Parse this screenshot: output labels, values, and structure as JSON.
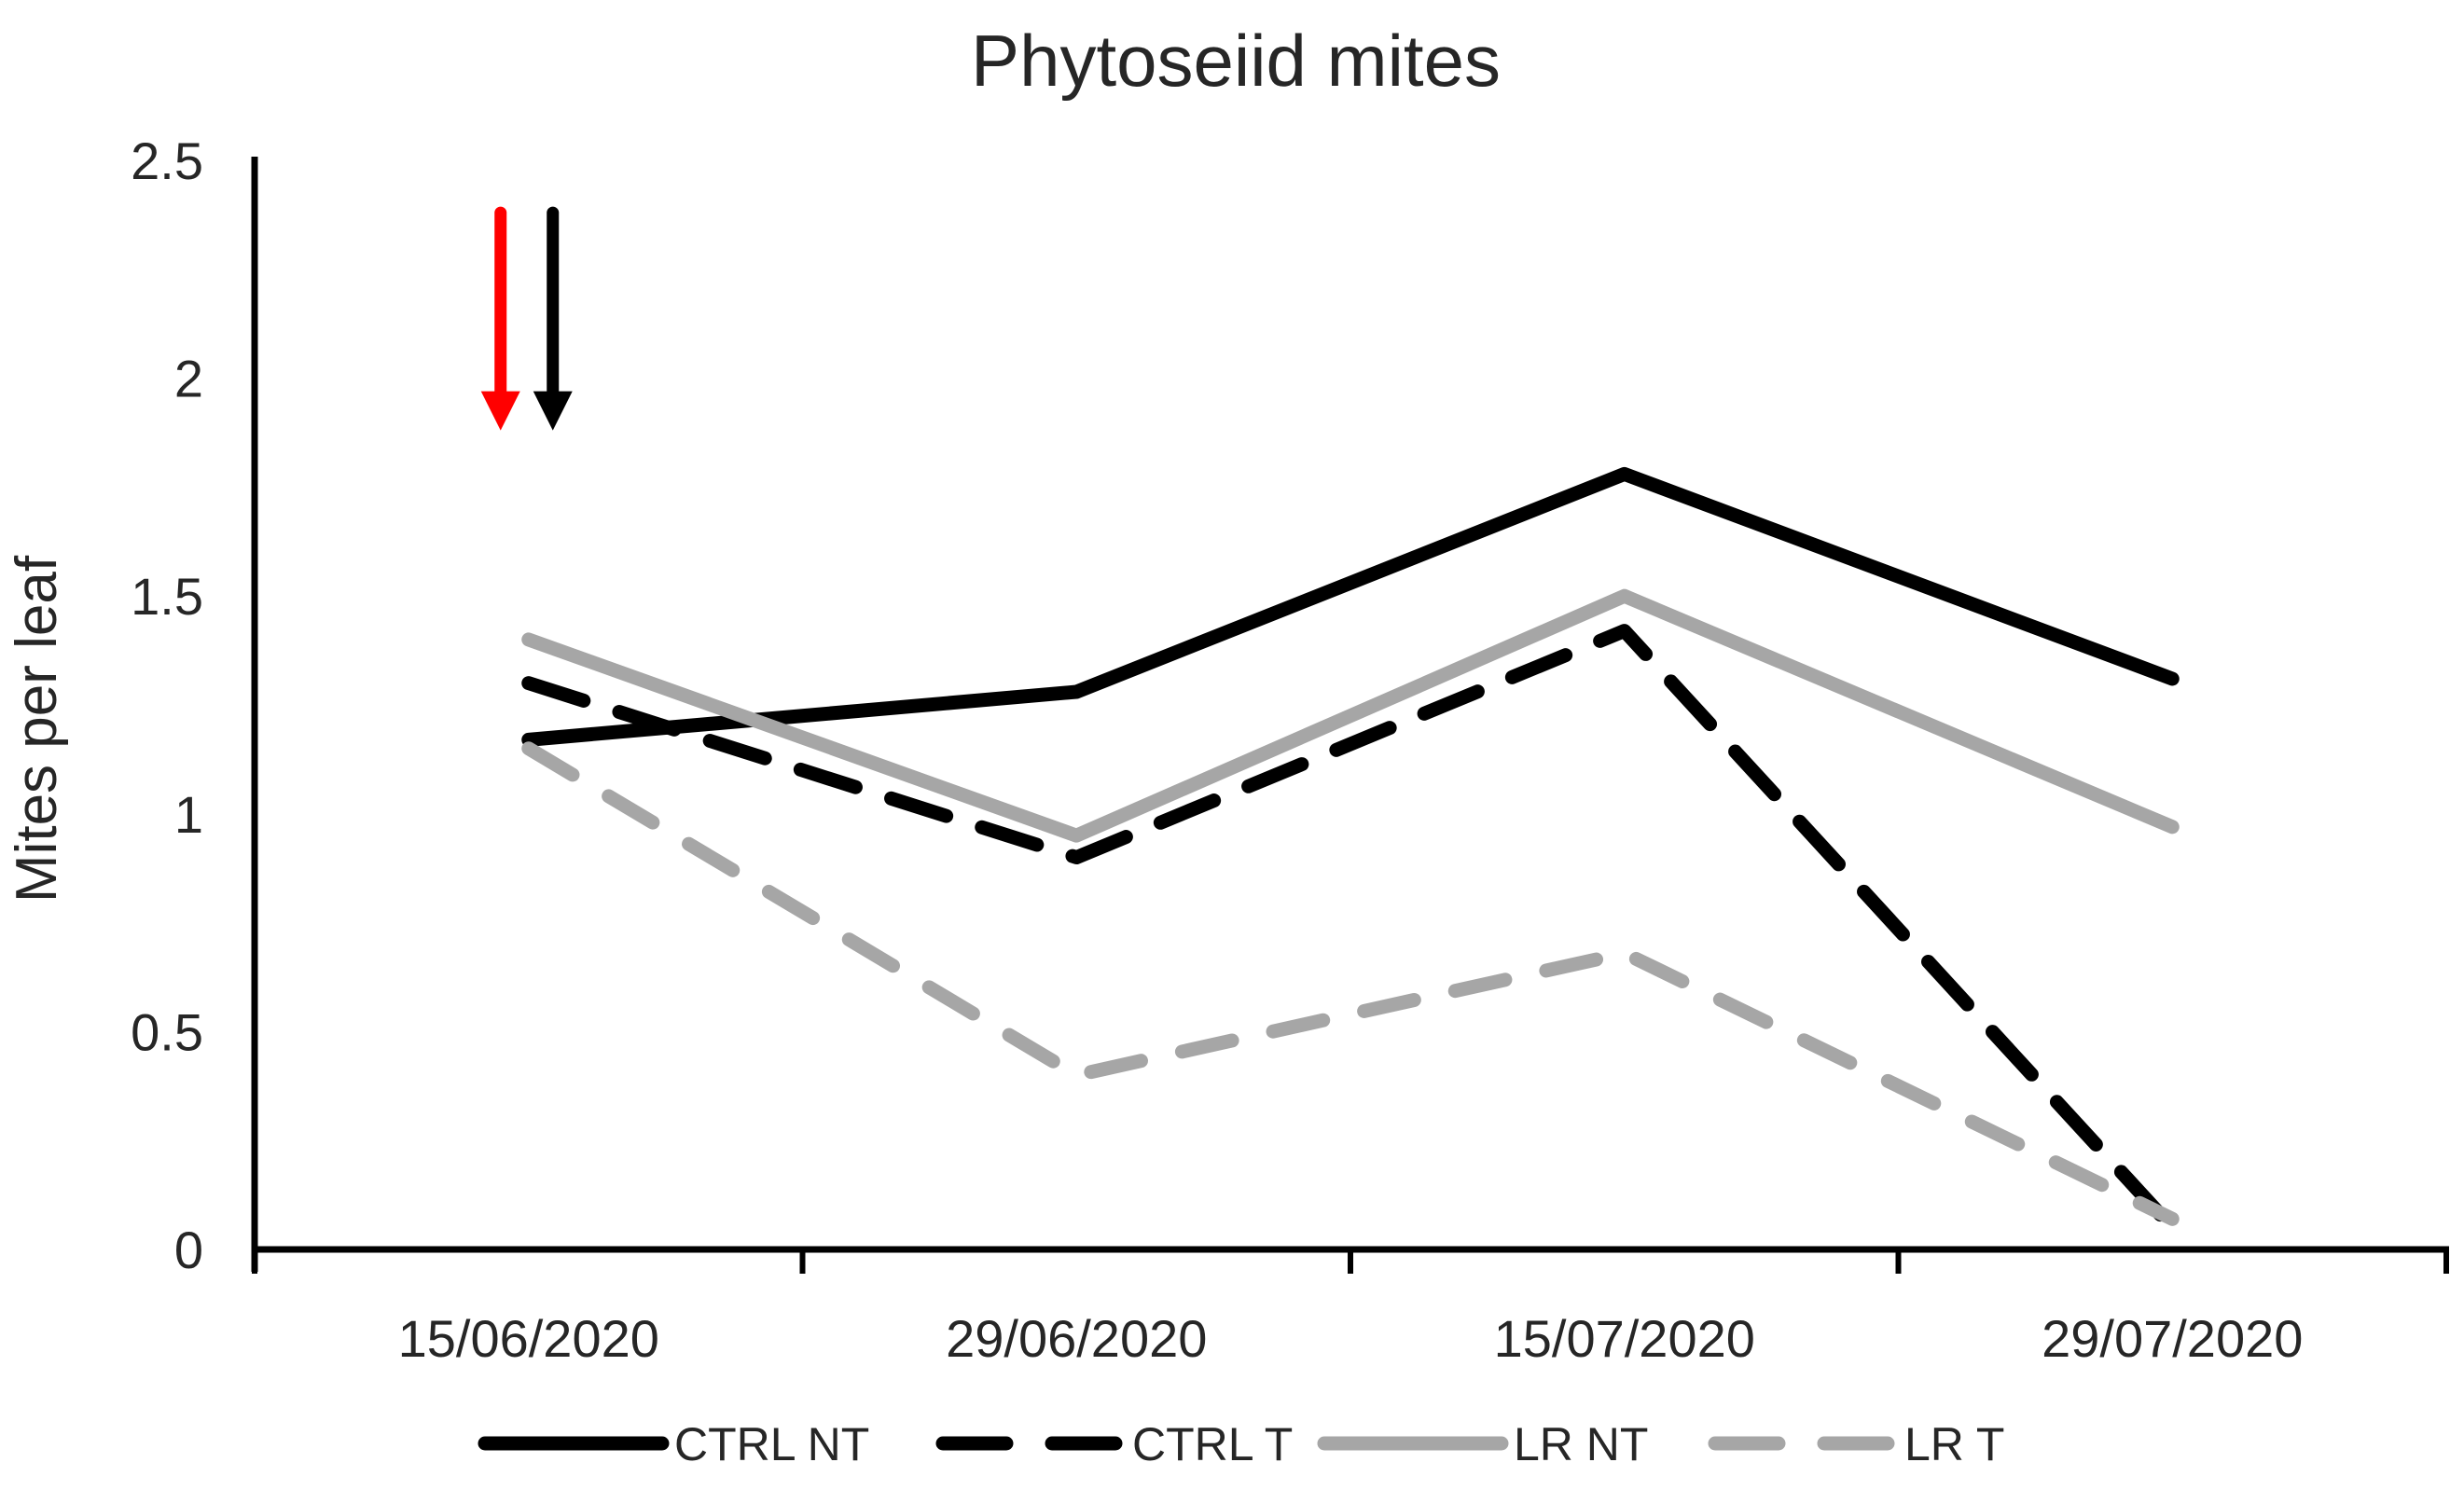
{
  "chart_data": {
    "type": "line",
    "title": "Phytoseiid mites",
    "xlabel": "",
    "ylabel": "Mites per leaf",
    "ylim": [
      0,
      2.5
    ],
    "yticks": [
      0,
      0.5,
      1,
      1.5,
      2,
      2.5
    ],
    "ytick_labels": [
      "0",
      "0.5",
      "1",
      "1.5",
      "2",
      "2.5"
    ],
    "grid": false,
    "legend_position": "bottom",
    "categories": [
      "15/06/2020",
      "29/06/2020",
      "15/07/2020",
      "29/07/2020"
    ],
    "series": [
      {
        "name": "CTRL NT",
        "color": "#000000",
        "line_style": "solid",
        "values": [
          1.17,
          1.28,
          1.78,
          1.31
        ]
      },
      {
        "name": "CTRL T",
        "color": "#000000",
        "line_style": "dashed",
        "values": [
          1.3,
          0.9,
          1.42,
          0.05
        ]
      },
      {
        "name": "LR NT",
        "color": "#A6A6A6",
        "line_style": "solid",
        "values": [
          1.4,
          0.95,
          1.5,
          0.97
        ]
      },
      {
        "name": "LR T",
        "color": "#A6A6A6",
        "line_style": "dashed",
        "values": [
          1.15,
          0.4,
          0.68,
          0.07
        ]
      }
    ],
    "annotations": {
      "arrows": [
        {
          "name": "red-spray-arrow",
          "color": "#FF0000",
          "category_index": 0,
          "y_from": 2.38,
          "y_to": 1.88
        },
        {
          "name": "black-spray-arrow",
          "color": "#000000",
          "category_index": 0,
          "y_from": 2.38,
          "y_to": 1.88
        }
      ]
    },
    "axis_color": "#000000"
  }
}
